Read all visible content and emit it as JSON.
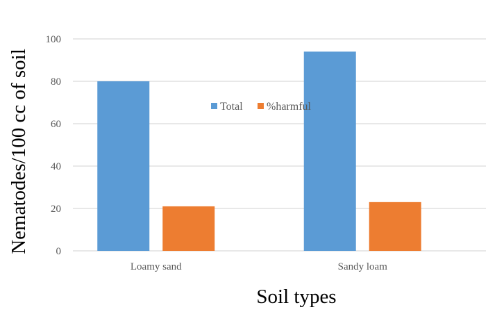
{
  "chart_data": {
    "type": "bar",
    "title": "",
    "xlabel": "Soil types",
    "ylabel": "Nematodes/100 cc of soil",
    "categories": [
      "Loamy sand",
      "Sandy loam"
    ],
    "series": [
      {
        "name": "Total",
        "values": [
          80,
          94
        ],
        "color": "#5B9BD5"
      },
      {
        "name": "%harmful",
        "values": [
          21,
          23
        ],
        "color": "#ED7D31"
      }
    ],
    "ylim": [
      0,
      100
    ],
    "yticks": [
      0,
      20,
      40,
      60,
      80,
      100
    ],
    "grid": true,
    "legend": "top-center"
  }
}
